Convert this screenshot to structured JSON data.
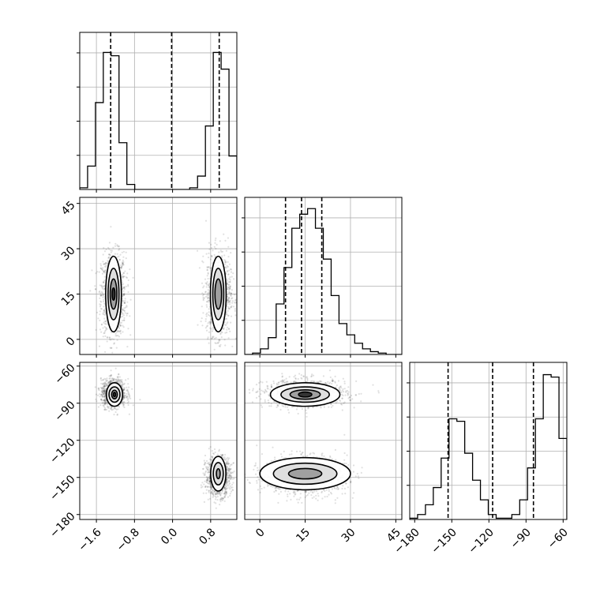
{
  "chart_data": {
    "type": "scatter",
    "subtype": "corner-plot",
    "colors": {
      "line": "#000000",
      "grid": "#b0b0b0",
      "scatter": "#000000"
    },
    "grid": true,
    "params": [
      {
        "range": [
          -1.95,
          1.35
        ],
        "ticks": [
          "-1.6",
          "-0.8",
          "0.0",
          "0.8"
        ],
        "tick_values": [
          -1.6,
          -0.8,
          0.0,
          0.8
        ]
      },
      {
        "range": [
          -5,
          47
        ],
        "ticks": [
          "0",
          "15",
          "30",
          "45"
        ],
        "tick_values": [
          0,
          15,
          30,
          45
        ]
      },
      {
        "range": [
          -184,
          -57
        ],
        "ticks": [
          "-180",
          "-150",
          "-120",
          "-90",
          "-60"
        ],
        "tick_values": [
          -180,
          -150,
          -120,
          -90,
          -60
        ]
      }
    ],
    "quantiles": [
      [
        -1.3,
        -0.02,
        0.98
      ],
      [
        8.5,
        13.8,
        20.5
      ],
      [
        -153,
        -117,
        -84
      ]
    ],
    "histograms": [
      {
        "edges_start": -1.95,
        "bin_width": 0.165,
        "counts": [
          0.5,
          7,
          26,
          41,
          40,
          14,
          1.5,
          0,
          0,
          0,
          0,
          0,
          0,
          0,
          0.5,
          4,
          19,
          41,
          36,
          10,
          0.5
        ],
        "ymax": 47
      },
      {
        "edges_start": -5,
        "bin_width": 2.6,
        "counts": [
          0,
          0.5,
          2,
          6,
          18,
          31,
          45,
          50,
          52,
          45,
          34,
          21,
          11,
          7,
          4,
          2,
          1,
          0.5,
          0,
          0
        ],
        "ymax": 56
      },
      {
        "edges_start": -184,
        "bin_width": 6.35,
        "counts": [
          0.5,
          2,
          6,
          13,
          25,
          41,
          40,
          27,
          16,
          8,
          2,
          0.5,
          0.5,
          2,
          8,
          21,
          41,
          59,
          58,
          33
        ],
        "ymax": 64
      }
    ],
    "clusters": [
      {
        "mean": [
          -1.24,
          15,
          -82
        ],
        "sd": [
          0.13,
          6.8,
          5.6
        ],
        "weight": 0.5
      },
      {
        "mean": [
          0.96,
          15,
          -149
        ],
        "sd": [
          0.13,
          6.8,
          7.8
        ],
        "weight": 0.5
      }
    ],
    "contours": {
      "p1_p0": [
        {
          "cx": -1.24,
          "cy": 15,
          "levels": [
            {
              "rx": 0.165,
              "ry": 12.5,
              "fill": "#ffffff"
            },
            {
              "rx": 0.115,
              "ry": 8.5,
              "fill": "#dcdcdc"
            },
            {
              "rx": 0.07,
              "ry": 5.0,
              "fill": "#9a9a9a"
            },
            {
              "rx": 0.03,
              "ry": 2.0,
              "fill": "#2a2a2a"
            }
          ]
        },
        {
          "cx": 0.96,
          "cy": 15,
          "levels": [
            {
              "rx": 0.165,
              "ry": 12.5,
              "fill": "#ffffff"
            },
            {
              "rx": 0.115,
              "ry": 8.5,
              "fill": "#dcdcdc"
            },
            {
              "rx": 0.07,
              "ry": 5.0,
              "fill": "#9a9a9a"
            }
          ]
        }
      ],
      "p2_p0": [
        {
          "cx": -1.22,
          "cy": -83,
          "levels": [
            {
              "rx": 0.17,
              "ry": 9.5,
              "fill": "#ffffff"
            },
            {
              "rx": 0.115,
              "ry": 6.2,
              "fill": "#dcdcdc"
            },
            {
              "rx": 0.06,
              "ry": 3.5,
              "fill": "#9a9a9a"
            },
            {
              "rx": 0.025,
              "ry": 1.8,
              "fill": "#2a2a2a"
            }
          ]
        },
        {
          "cx": 0.96,
          "cy": -147,
          "levels": [
            {
              "rx": 0.16,
              "ry": 14,
              "fill": "#ffffff"
            },
            {
              "rx": 0.105,
              "ry": 9,
              "fill": "#dcdcdc"
            },
            {
              "rx": 0.04,
              "ry": 4,
              "fill": "#9a9a9a"
            }
          ]
        }
      ],
      "p2_p1": [
        {
          "cx": 15,
          "cy": -83,
          "levels": [
            {
              "rx": 11.5,
              "ry": 9.5,
              "fill": "#ffffff"
            },
            {
              "rx": 8.0,
              "ry": 6.2,
              "fill": "#dcdcdc"
            },
            {
              "rx": 5.0,
              "ry": 3.8,
              "fill": "#9a9a9a"
            },
            {
              "rx": 2.2,
              "ry": 2.0,
              "fill": "#2a2a2a"
            }
          ]
        },
        {
          "cx": 15,
          "cy": -147,
          "levels": [
            {
              "rx": 15.0,
              "ry": 13,
              "fill": "#ffffff"
            },
            {
              "rx": 10.5,
              "ry": 8.5,
              "fill": "#dcdcdc"
            },
            {
              "rx": 5.5,
              "ry": 4.2,
              "fill": "#9a9a9a"
            }
          ]
        }
      ]
    },
    "samples_per_cluster": 1100,
    "scatter_alpha": 0.12
  }
}
